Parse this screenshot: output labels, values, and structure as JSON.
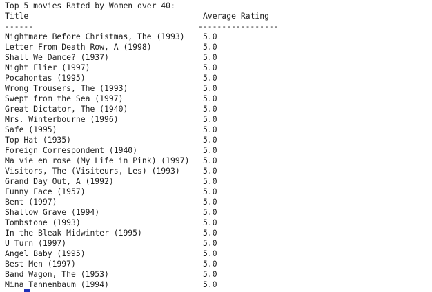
{
  "console": {
    "heading": "Top 5 movies Rated by Women over 40:",
    "column_title": "Title",
    "column_rating": "Average Rating",
    "title_rule": "------",
    "rating_rule": "-----------------",
    "rows": [
      {
        "title": "Nightmare Before Christmas, The (1993)",
        "rating": "5.0"
      },
      {
        "title": "Letter From Death Row, A (1998)",
        "rating": "5.0"
      },
      {
        "title": "Shall We Dance? (1937)",
        "rating": "5.0"
      },
      {
        "title": "Night Flier (1997)",
        "rating": "5.0"
      },
      {
        "title": "Pocahontas (1995)",
        "rating": "5.0"
      },
      {
        "title": "Wrong Trousers, The (1993)",
        "rating": "5.0"
      },
      {
        "title": "Swept from the Sea (1997)",
        "rating": "5.0"
      },
      {
        "title": "Great Dictator, The (1940)",
        "rating": "5.0"
      },
      {
        "title": "Mrs. Winterbourne (1996)",
        "rating": "5.0"
      },
      {
        "title": "Safe (1995)",
        "rating": "5.0"
      },
      {
        "title": "Top Hat (1935)",
        "rating": "5.0"
      },
      {
        "title": "Foreign Correspondent (1940)",
        "rating": "5.0"
      },
      {
        "title": "Ma vie en rose (My Life in Pink) (1997)",
        "rating": "5.0"
      },
      {
        "title": "Visitors, The (Visiteurs, Les) (1993)",
        "rating": "5.0"
      },
      {
        "title": "Grand Day Out, A (1992)",
        "rating": "5.0"
      },
      {
        "title": "Funny Face (1957)",
        "rating": "5.0"
      },
      {
        "title": "Bent (1997)",
        "rating": "5.0"
      },
      {
        "title": "Shallow Grave (1994)",
        "rating": "5.0"
      },
      {
        "title": "Tombstone (1993)",
        "rating": "5.0"
      },
      {
        "title": "In the Bleak Midwinter (1995)",
        "rating": "5.0"
      },
      {
        "title": "U Turn (1997)",
        "rating": "5.0"
      },
      {
        "title": "Angel Baby (1995)",
        "rating": "5.0"
      },
      {
        "title": "Best Men (1997)",
        "rating": "5.0"
      },
      {
        "title": "Band Wagon, The (1953)",
        "rating": "5.0"
      },
      {
        "title": "Mina Tannenbaum (1994)",
        "rating": "5.0"
      }
    ]
  },
  "colors": {
    "text": "#1e1e1e",
    "background": "#ffffff",
    "cursor": "#1c2fb8"
  }
}
